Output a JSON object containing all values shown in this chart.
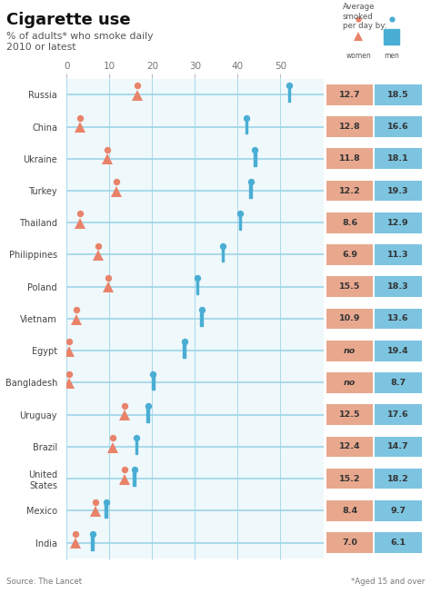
{
  "title": "Cigarette use",
  "subtitle1": "% of adults* who smoke daily",
  "subtitle2": "2010 or latest",
  "source": "Source: The Lancet",
  "footnote": "*Aged 15 and over",
  "countries": [
    "Russia",
    "China",
    "Ukraine",
    "Turkey",
    "Thailand",
    "Philippines",
    "Poland",
    "Vietnam",
    "Egypt",
    "Bangladesh",
    "Uruguay",
    "Brazil",
    "United\nStates",
    "Mexico",
    "India"
  ],
  "women_pct": [
    16.5,
    3.1,
    9.4,
    11.5,
    3.0,
    7.4,
    9.7,
    2.2,
    0.5,
    0.5,
    13.5,
    10.8,
    13.5,
    6.8,
    2.0
  ],
  "men_pct": [
    52,
    42,
    44,
    43,
    40.5,
    36.5,
    30.5,
    31.5,
    27.5,
    20.2,
    19.0,
    16.3,
    15.8,
    9.2,
    6.0
  ],
  "women_avg": [
    "12.7",
    "12.8",
    "11.8",
    "12.2",
    "8.6",
    "6.9",
    "15.5",
    "10.9",
    "no",
    "no",
    "12.5",
    "12.4",
    "15.2",
    "8.4",
    "7.0"
  ],
  "men_avg": [
    "18.5",
    "16.6",
    "18.1",
    "19.3",
    "12.9",
    "11.3",
    "18.3",
    "13.6",
    "19.4",
    "8.7",
    "17.6",
    "14.7",
    "18.2",
    "9.7",
    "6.1"
  ],
  "xlim": [
    0,
    60
  ],
  "xticks": [
    0,
    10,
    20,
    30,
    40,
    50
  ],
  "bg_color": "#ffffff",
  "women_color": "#e8836a",
  "men_color": "#4aaed4",
  "grid_color": "#9dd4e8",
  "avg_women_bg": "#e8a88e",
  "avg_men_bg": "#7cc4e0",
  "row_colors": [
    "#e8f4fa",
    "#ffffff",
    "#e8f4fa",
    "#ffffff",
    "#e8f4fa",
    "#ffffff",
    "#e8f4fa",
    "#ffffff",
    "#e8f4fa",
    "#ffffff",
    "#e8f4fa",
    "#ffffff",
    "#e8f4fa",
    "#ffffff",
    "#e8f4fa"
  ]
}
